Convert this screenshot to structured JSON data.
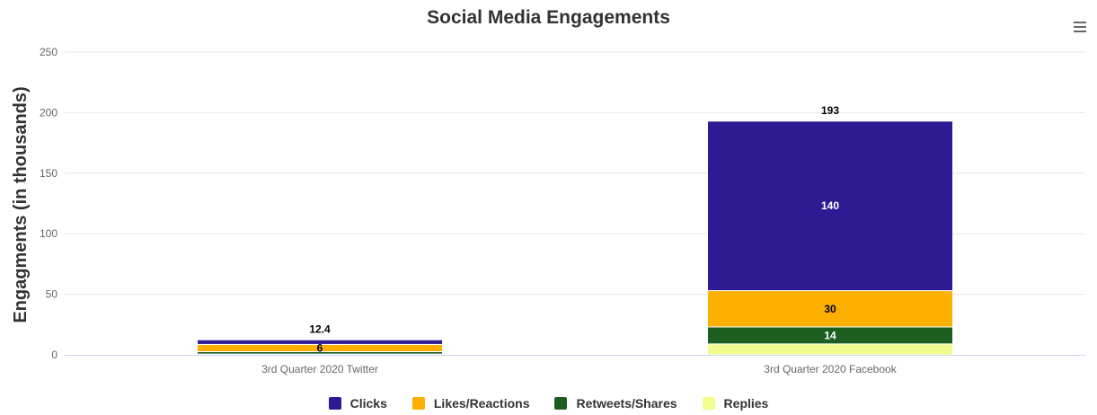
{
  "chart_data": {
    "type": "bar",
    "stacked": true,
    "title": "Social Media Engagements",
    "ylabel": "Engagments (in thousands)",
    "xlabel": "",
    "ylim": [
      0,
      250
    ],
    "yticks": [
      0,
      50,
      100,
      150,
      200,
      250
    ],
    "grid": true,
    "legend_position": "bottom",
    "categories": [
      "3rd Quarter 2020 Twitter",
      "3rd Quarter 2020 Facebook"
    ],
    "totals": [
      12.4,
      193
    ],
    "totals_labels": [
      "12.4",
      "193"
    ],
    "series": [
      {
        "name": "Replies",
        "color": "#F2FC8E",
        "values": [
          0.6,
          9
        ],
        "labels": [
          "",
          ""
        ]
      },
      {
        "name": "Retweets/Shares",
        "color": "#1C5E20",
        "values": [
          2,
          14
        ],
        "labels": [
          "",
          "14"
        ]
      },
      {
        "name": "Likes/Reactions",
        "color": "#FDB000",
        "values": [
          6,
          30
        ],
        "labels": [
          "6",
          "30"
        ]
      },
      {
        "name": "Clicks",
        "color": "#2E1A93",
        "values": [
          3.8,
          140
        ],
        "labels": [
          "",
          "140"
        ]
      }
    ],
    "legend_order": [
      "Clicks",
      "Likes/Reactions",
      "Retweets/Shares",
      "Replies"
    ]
  }
}
